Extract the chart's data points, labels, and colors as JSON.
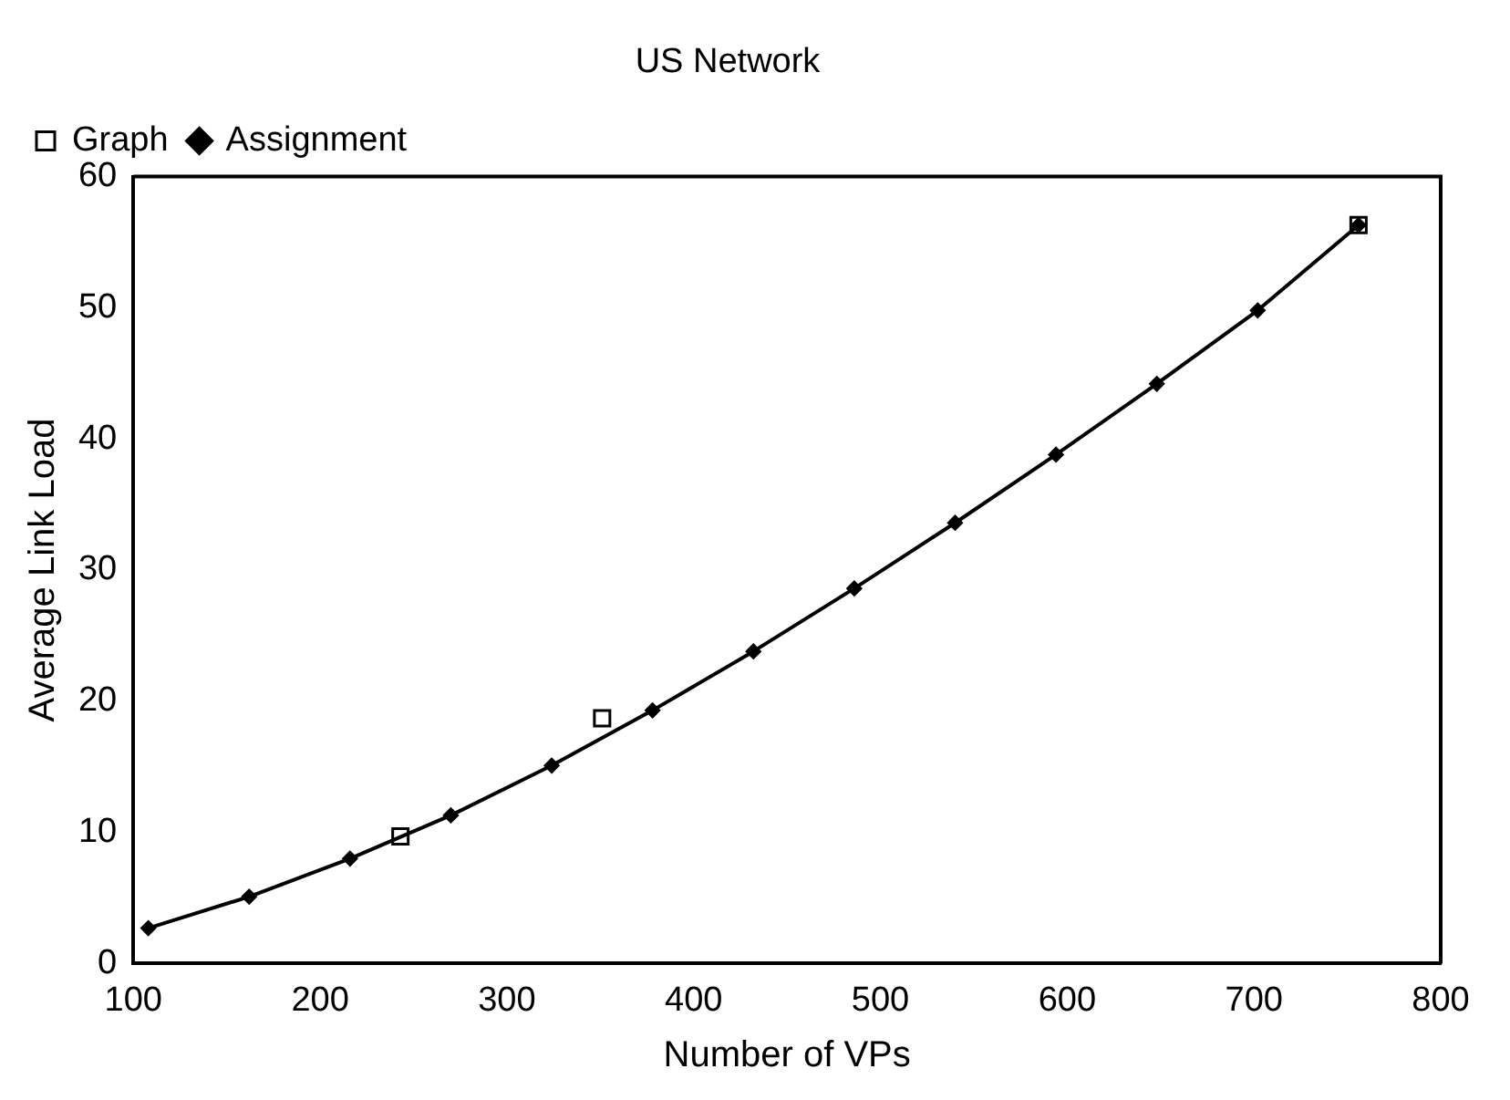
{
  "chart_data": {
    "type": "line",
    "title": "US Network",
    "xlabel": "Number of VPs",
    "ylabel": "Average Link Load",
    "xlim": [
      100,
      800
    ],
    "xticks": [
      100,
      200,
      300,
      400,
      500,
      600,
      700,
      800
    ],
    "ylim": [
      0,
      60
    ],
    "yticks": [
      0,
      10,
      20,
      30,
      40,
      50,
      60
    ],
    "grid": false,
    "legend": "top left",
    "series": [
      {
        "name": "Assignment",
        "color": "#000000",
        "marker": "diamond",
        "x": [
          108,
          162,
          216,
          270,
          324,
          378,
          432,
          486,
          540,
          594,
          648,
          702,
          756
        ],
        "values": [
          2.7,
          5.1,
          8,
          11.3,
          15.1,
          19.3,
          23.8,
          28.6,
          33.6,
          38.8,
          44.2,
          49.8,
          56.3
        ]
      },
      {
        "name": "Graph",
        "type": "scatter",
        "color": "#000000",
        "marker": "square",
        "x": [
          243,
          351,
          756
        ],
        "values": [
          9.7,
          18.7,
          56.3
        ]
      }
    ]
  }
}
